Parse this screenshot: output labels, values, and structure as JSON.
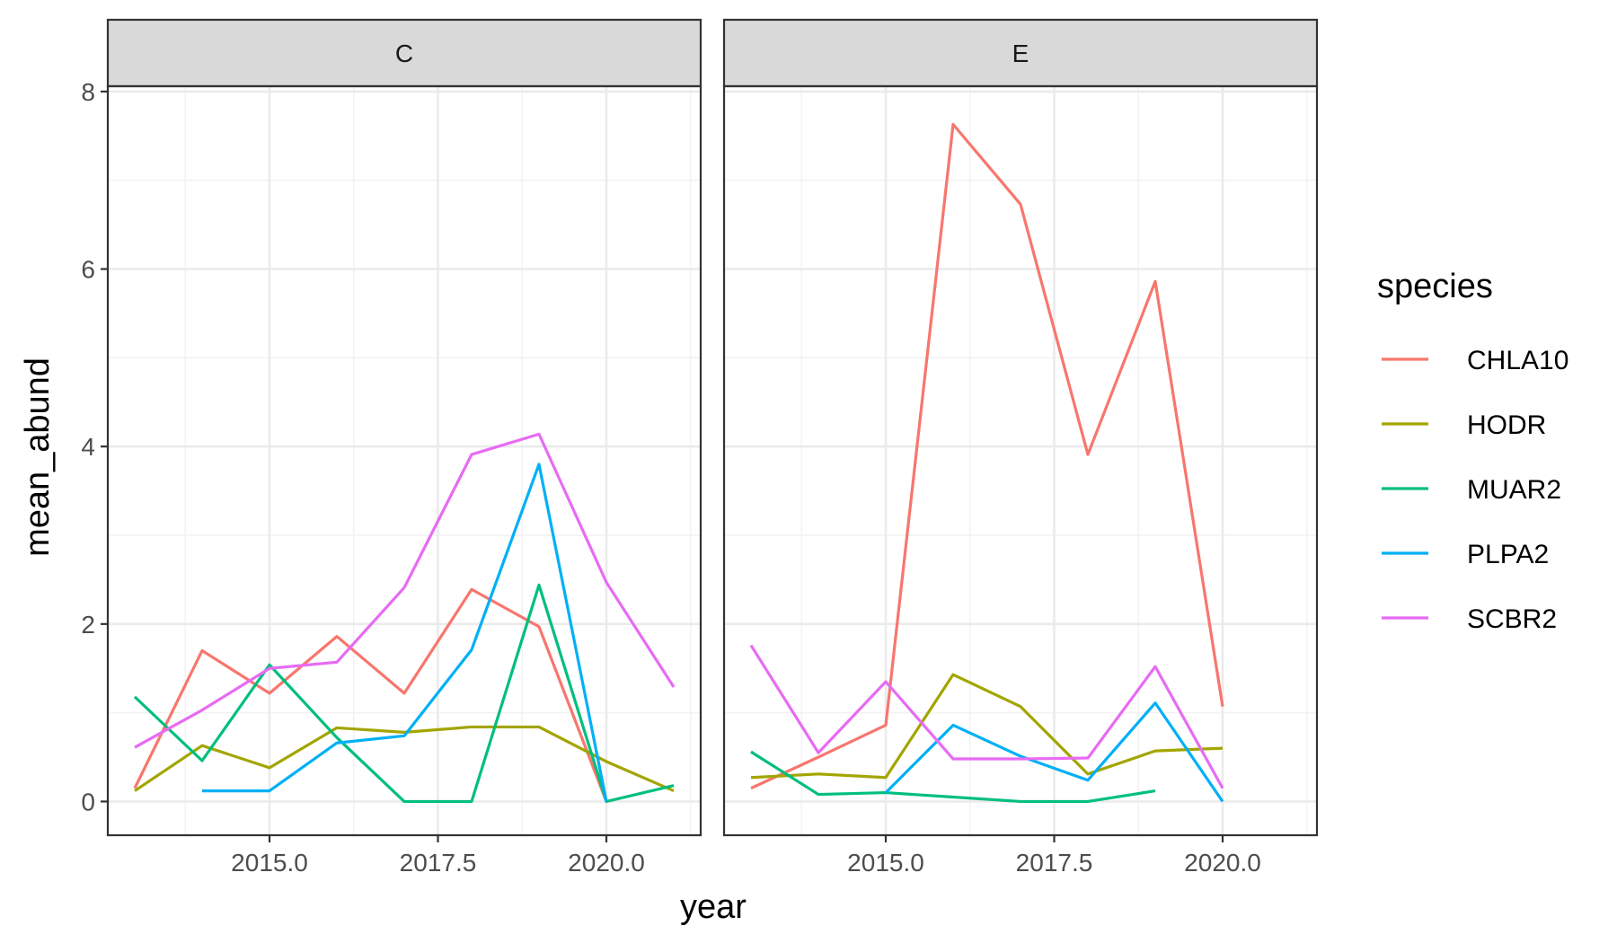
{
  "chart_data": {
    "type": "line",
    "xlabel": "year",
    "ylabel": "mean_abund",
    "xlim": [
      2012.6,
      2021.4
    ],
    "ylim": [
      -0.38,
      8.06
    ],
    "x_ticks": [
      2015,
      2017.5,
      2020
    ],
    "x_tick_labels": [
      "2015.0",
      "2017.5",
      "2020.0"
    ],
    "y_ticks": [
      0,
      2,
      4,
      6,
      8
    ],
    "y_tick_labels": [
      "0",
      "2",
      "4",
      "6",
      "8"
    ],
    "grid": true,
    "legend": {
      "title": "species",
      "position": "right"
    },
    "facets": [
      {
        "label": "C",
        "series": [
          {
            "name": "CHLA10",
            "color": "#F8766D",
            "points": [
              [
                2013,
                0.15
              ],
              [
                2014,
                1.7
              ],
              [
                2015,
                1.22
              ],
              [
                2016,
                1.86
              ],
              [
                2017,
                1.22
              ],
              [
                2018,
                2.39
              ],
              [
                2019,
                1.97
              ],
              [
                2020,
                0
              ]
            ]
          },
          {
            "name": "HODR",
            "color": "#A3A500",
            "points": [
              [
                2013,
                0.12
              ],
              [
                2014,
                0.63
              ],
              [
                2015,
                0.38
              ],
              [
                2016,
                0.83
              ],
              [
                2017,
                0.78
              ],
              [
                2018,
                0.84
              ],
              [
                2019,
                0.84
              ],
              [
                2020,
                0.45
              ],
              [
                2021,
                0.12
              ]
            ]
          },
          {
            "name": "MUAR2",
            "color": "#00BF7D",
            "points": [
              [
                2013,
                1.18
              ],
              [
                2014,
                0.46
              ],
              [
                2015,
                1.54
              ],
              [
                2016,
                0.72
              ],
              [
                2017,
                0
              ],
              [
                2018,
                0
              ],
              [
                2019,
                2.44
              ],
              [
                2020,
                0
              ],
              [
                2021,
                0.18
              ]
            ]
          },
          {
            "name": "PLPA2",
            "color": "#00B0F6",
            "points": [
              [
                2014,
                0.12
              ],
              [
                2015,
                0.12
              ],
              [
                2016,
                0.66
              ],
              [
                2017,
                0.74
              ],
              [
                2018,
                1.71
              ],
              [
                2019,
                3.8
              ],
              [
                2020,
                0
              ]
            ]
          },
          {
            "name": "SCBR2",
            "color": "#E76BF3",
            "points": [
              [
                2013,
                0.61
              ],
              [
                2014,
                1.03
              ],
              [
                2015,
                1.5
              ],
              [
                2016,
                1.57
              ],
              [
                2017,
                2.41
              ],
              [
                2018,
                3.91
              ],
              [
                2019,
                4.14
              ],
              [
                2020,
                2.47
              ],
              [
                2021,
                1.29
              ]
            ]
          }
        ]
      },
      {
        "label": "E",
        "series": [
          {
            "name": "CHLA10",
            "color": "#F8766D",
            "points": [
              [
                2013,
                0.15
              ],
              [
                2014,
                0.5
              ],
              [
                2015,
                0.86
              ],
              [
                2016,
                7.63
              ],
              [
                2017,
                6.73
              ],
              [
                2018,
                3.91
              ],
              [
                2019,
                5.86
              ],
              [
                2020,
                1.07
              ]
            ]
          },
          {
            "name": "HODR",
            "color": "#A3A500",
            "points": [
              [
                2013,
                0.27
              ],
              [
                2014,
                0.31
              ],
              [
                2015,
                0.27
              ],
              [
                2016,
                1.43
              ],
              [
                2017,
                1.07
              ],
              [
                2018,
                0.31
              ],
              [
                2019,
                0.57
              ],
              [
                2020,
                0.6
              ]
            ]
          },
          {
            "name": "MUAR2",
            "color": "#00BF7D",
            "points": [
              [
                2013,
                0.56
              ],
              [
                2014,
                0.08
              ],
              [
                2015,
                0.1
              ],
              [
                2016,
                0.05
              ],
              [
                2017,
                0
              ],
              [
                2018,
                0
              ],
              [
                2019,
                0.12
              ]
            ]
          },
          {
            "name": "PLPA2",
            "color": "#00B0F6",
            "points": [
              [
                2015,
                0.1
              ],
              [
                2016,
                0.86
              ],
              [
                2017,
                0.51
              ],
              [
                2018,
                0.24
              ],
              [
                2019,
                1.11
              ],
              [
                2020,
                0
              ]
            ]
          },
          {
            "name": "SCBR2",
            "color": "#E76BF3",
            "points": [
              [
                2013,
                1.76
              ],
              [
                2014,
                0.55
              ],
              [
                2015,
                1.35
              ],
              [
                2016,
                0.48
              ],
              [
                2017,
                0.48
              ],
              [
                2018,
                0.49
              ],
              [
                2019,
                1.52
              ],
              [
                2020,
                0.15
              ]
            ]
          }
        ]
      }
    ]
  }
}
